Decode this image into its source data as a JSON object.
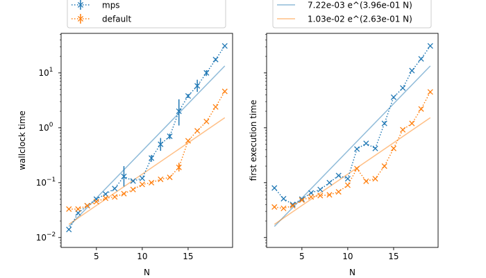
{
  "chart_data": [
    {
      "type": "line",
      "xlabel": "N",
      "ylabel": "wallclock time",
      "xlim": [
        1.15,
        19.85
      ],
      "ylim_log10": [
        -2.18,
        1.72
      ],
      "yscale": "log",
      "xticks": [
        5,
        10,
        15
      ],
      "xtick_labels": [
        "5",
        "10",
        "15"
      ],
      "yticks_exp": [
        -2,
        -1,
        0,
        1
      ],
      "legend": {
        "placement": "top (above axes)",
        "entries": [
          {
            "label": "mps",
            "color": "#1f77b4",
            "marker": "x",
            "line": "dotted",
            "errorbars": true
          },
          {
            "label": "default",
            "color": "#ff7f0e",
            "marker": "x",
            "line": "dotted",
            "errorbars": true
          }
        ]
      },
      "series": [
        {
          "name": "mps",
          "color": "#1f77b4",
          "x": [
            2,
            3,
            4,
            5,
            6,
            7,
            8,
            9,
            10,
            11,
            12,
            13,
            14,
            15,
            16,
            17,
            18,
            19
          ],
          "y": [
            0.014,
            0.028,
            0.038,
            0.05,
            0.062,
            0.078,
            0.13,
            0.107,
            0.12,
            0.28,
            0.5,
            0.7,
            2.0,
            3.8,
            5.8,
            10,
            17.5,
            31
          ],
          "err_lo": [
            0.014,
            0.028,
            0.038,
            0.05,
            0.062,
            0.078,
            0.085,
            0.107,
            0.12,
            0.24,
            0.38,
            0.62,
            1.1,
            3.5,
            4.5,
            8.8,
            16.5,
            30
          ],
          "err_hi": [
            0.014,
            0.028,
            0.038,
            0.05,
            0.062,
            0.078,
            0.2,
            0.107,
            0.12,
            0.32,
            0.65,
            0.78,
            3.3,
            4.1,
            7.5,
            11.2,
            18.5,
            32
          ]
        },
        {
          "name": "default",
          "color": "#ff7f0e",
          "x": [
            2,
            3,
            4,
            5,
            6,
            7,
            8,
            9,
            10,
            11,
            12,
            13,
            14,
            15,
            16,
            17,
            18,
            19
          ],
          "y": [
            0.033,
            0.033,
            0.038,
            0.045,
            0.052,
            0.055,
            0.063,
            0.075,
            0.093,
            0.1,
            0.115,
            0.125,
            0.19,
            0.58,
            0.88,
            1.3,
            2.4,
            4.6
          ],
          "err_lo": [
            0.033,
            0.033,
            0.038,
            0.045,
            0.052,
            0.055,
            0.063,
            0.075,
            0.093,
            0.1,
            0.115,
            0.125,
            0.16,
            0.58,
            0.88,
            1.3,
            2.4,
            4.6
          ],
          "err_hi": [
            0.033,
            0.033,
            0.038,
            0.045,
            0.052,
            0.055,
            0.063,
            0.075,
            0.093,
            0.1,
            0.115,
            0.125,
            0.23,
            0.58,
            0.88,
            1.3,
            2.4,
            4.6
          ]
        }
      ],
      "fits": [
        {
          "a": 0.00722,
          "b": 0.396,
          "color": "#1f77b4",
          "x_range": [
            2,
            19
          ]
        },
        {
          "a": 0.0103,
          "b": 0.263,
          "color": "#ff7f0e",
          "x_range": [
            2,
            19
          ]
        }
      ]
    },
    {
      "type": "scatter",
      "xlabel": "N",
      "ylabel": "first execution time",
      "xlim": [
        1.15,
        19.85
      ],
      "ylim_log10": [
        -2.18,
        1.72
      ],
      "yscale": "log",
      "xticks": [
        5,
        10,
        15
      ],
      "xtick_labels": [
        "5",
        "10",
        "15"
      ],
      "yticks_exp": [
        -2,
        -1,
        0,
        1
      ],
      "ytick_labels_shown": false,
      "legend": {
        "placement": "top (above axes)",
        "entries": [
          {
            "label": "7.22e-03 e^(3.96e-01 N)",
            "color": "#1f77b4",
            "line": "solid"
          },
          {
            "label": "1.03e-02 e^(2.63e-01 N)",
            "color": "#ff7f0e",
            "line": "solid"
          }
        ]
      },
      "series": [
        {
          "name": "mps",
          "color": "#1f77b4",
          "x": [
            2,
            3,
            4,
            5,
            6,
            7,
            8,
            9,
            10,
            11,
            12,
            13,
            14,
            15,
            16,
            17,
            18,
            19
          ],
          "y": [
            0.08,
            0.051,
            0.04,
            0.05,
            0.065,
            0.075,
            0.1,
            0.135,
            0.118,
            0.41,
            0.52,
            0.42,
            1.2,
            3.6,
            5.3,
            11,
            18,
            31
          ]
        },
        {
          "name": "default",
          "color": "#ff7f0e",
          "x": [
            2,
            3,
            4,
            5,
            6,
            7,
            8,
            9,
            10,
            11,
            12,
            13,
            14,
            15,
            16,
            17,
            18,
            19
          ],
          "y": [
            0.036,
            0.034,
            0.038,
            0.048,
            0.055,
            0.058,
            0.06,
            0.068,
            0.09,
            0.18,
            0.106,
            0.118,
            0.2,
            0.42,
            0.92,
            1.2,
            2.2,
            4.5
          ]
        }
      ],
      "fits": [
        {
          "a": 0.00722,
          "b": 0.396,
          "color": "#1f77b4",
          "x_range": [
            2,
            19
          ]
        },
        {
          "a": 0.0103,
          "b": 0.263,
          "color": "#ff7f0e",
          "x_range": [
            2,
            19
          ]
        }
      ]
    }
  ]
}
